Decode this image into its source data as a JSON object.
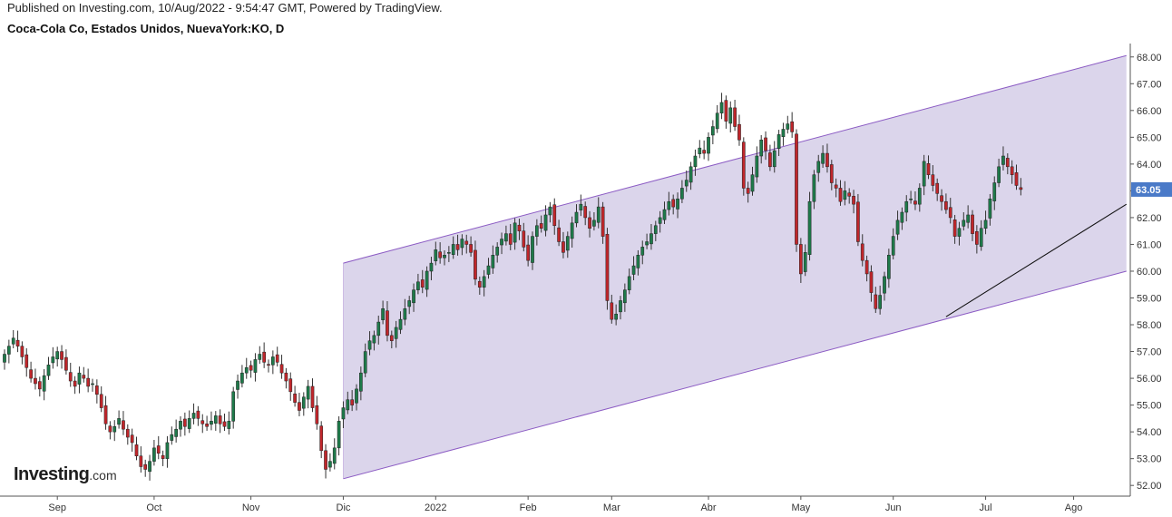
{
  "header": {
    "published": "Published on Investing.com, 10/Aug/2022 - 9:54:47 GMT, Powered by TradingView.",
    "symbol": "Coca-Cola Co, Estados Unidos, NuevaYork:KO, D"
  },
  "logo": {
    "main": "Investing",
    "suffix": ".com"
  },
  "colors": {
    "up": "#1e7a4a",
    "down": "#c0262b",
    "wick": "#333333",
    "channel_fill": "#d9d3ea",
    "channel_line": "#8c5cc4",
    "trendline": "#111111",
    "last_price_badge": "#4a7ac8",
    "axis": "#555555"
  },
  "chart_data": {
    "type": "candlestick",
    "title": "Coca-Cola Co, Estados Unidos, NuevaYork:KO, D",
    "timeframe": "D",
    "x_ticks": [
      "Sep",
      "Oct",
      "Nov",
      "Dic",
      "2022",
      "Feb",
      "Mar",
      "Abr",
      "May",
      "Jun",
      "Jul",
      "Ago"
    ],
    "x_tick_index": [
      12,
      34,
      56,
      77,
      98,
      119,
      138,
      160,
      181,
      202,
      223,
      243
    ],
    "y_ticks": [
      "52.00",
      "53.00",
      "54.00",
      "55.00",
      "56.00",
      "57.00",
      "58.00",
      "59.00",
      "60.00",
      "61.00",
      "62.00",
      "63.00",
      "64.00",
      "65.00",
      "66.00",
      "67.00",
      "68.00"
    ],
    "ylim": [
      51.6,
      68.5
    ],
    "last_price": "63.05",
    "closes": [
      56.9,
      57.2,
      57.5,
      57.2,
      56.8,
      56.4,
      56.0,
      55.8,
      55.6,
      56.1,
      56.5,
      56.8,
      57.0,
      56.7,
      56.3,
      55.9,
      55.7,
      56.2,
      56.0,
      55.7,
      55.8,
      55.4,
      54.9,
      54.3,
      54.0,
      54.2,
      54.5,
      54.1,
      53.8,
      53.6,
      53.1,
      52.7,
      52.6,
      52.9,
      53.4,
      53.2,
      53.0,
      53.6,
      53.9,
      54.1,
      54.4,
      54.2,
      54.5,
      54.7,
      54.5,
      54.3,
      54.2,
      54.4,
      54.6,
      54.3,
      54.2,
      54.4,
      55.5,
      55.9,
      56.2,
      56.4,
      56.3,
      56.7,
      56.9,
      56.6,
      56.5,
      56.8,
      56.6,
      56.2,
      55.9,
      55.5,
      55.1,
      54.8,
      55.3,
      55.7,
      54.9,
      54.3,
      53.3,
      52.6,
      52.9,
      53.4,
      54.4,
      54.9,
      55.2,
      55.0,
      55.6,
      56.2,
      57.0,
      57.4,
      57.6,
      58.1,
      58.6,
      57.6,
      57.4,
      57.9,
      58.2,
      58.6,
      58.9,
      59.3,
      59.6,
      59.4,
      60.0,
      60.3,
      60.8,
      60.5,
      60.6,
      60.7,
      61.0,
      60.8,
      61.2,
      61.0,
      60.7,
      59.7,
      59.4,
      59.8,
      60.2,
      60.6,
      60.9,
      61.2,
      61.4,
      61.0,
      61.8,
      61.5,
      60.9,
      60.4,
      61.3,
      61.7,
      61.6,
      62.1,
      62.4,
      61.7,
      61.1,
      60.7,
      61.3,
      61.8,
      62.2,
      62.5,
      62.0,
      61.6,
      61.9,
      62.4,
      61.3,
      58.9,
      58.2,
      58.4,
      58.9,
      59.3,
      59.8,
      60.2,
      60.6,
      60.9,
      61.1,
      61.4,
      61.7,
      62.0,
      62.3,
      62.6,
      62.4,
      62.7,
      63.1,
      63.4,
      63.9,
      64.3,
      64.6,
      64.4,
      65.0,
      65.4,
      65.9,
      66.3,
      65.6,
      66.1,
      65.4,
      64.9,
      63.1,
      62.9,
      63.6,
      64.3,
      64.9,
      64.5,
      63.9,
      64.5,
      65.1,
      65.3,
      65.5,
      65.2,
      61.0,
      59.9,
      60.7,
      62.6,
      63.6,
      64.1,
      64.4,
      63.9,
      63.3,
      63.1,
      62.6,
      63.0,
      62.8,
      62.5,
      61.1,
      60.4,
      59.9,
      59.2,
      58.6,
      59.1,
      59.8,
      60.6,
      61.3,
      61.9,
      62.2,
      62.6,
      62.7,
      62.5,
      63.1,
      64.1,
      63.6,
      63.2,
      62.9,
      62.6,
      62.3,
      62.0,
      61.3,
      61.6,
      61.9,
      62.1,
      61.4,
      61.0,
      61.6,
      61.9,
      62.7,
      63.3,
      63.9,
      64.3,
      63.9,
      63.6,
      63.2,
      63.05
    ],
    "channel": {
      "upper": [
        {
          "i": 77,
          "v": 60.3
        },
        {
          "i": 255,
          "v": 68.05
        }
      ],
      "lower": [
        {
          "i": 77,
          "v": 52.25
        },
        {
          "i": 255,
          "v": 60.0
        }
      ]
    },
    "trendline": [
      {
        "i": 214,
        "v": 58.3
      },
      {
        "i": 255,
        "v": 62.5
      }
    ]
  }
}
